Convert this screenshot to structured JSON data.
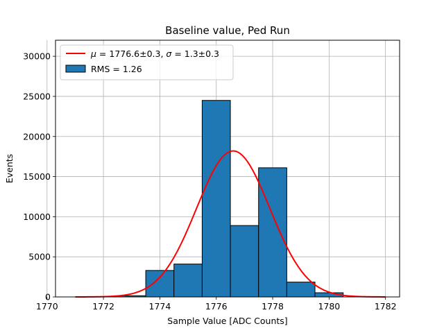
{
  "chart_data": {
    "type": "bar",
    "title": "Baseline value, Ped Run",
    "xlabel": "Sample Value [ADC Counts]",
    "ylabel": "Events",
    "xlim": [
      1770.3,
      1782.5
    ],
    "ylim": [
      0,
      32000
    ],
    "xticks": [
      1770,
      1772,
      1774,
      1776,
      1778,
      1780,
      1782
    ],
    "yticks": [
      0,
      5000,
      10000,
      15000,
      20000,
      25000,
      30000
    ],
    "grid": true,
    "legend_placement": "top-left",
    "histogram": {
      "name": "RMS = 1.26",
      "color": "#1f77b4",
      "edgecolor": "#000000",
      "bin_edges": [
        1770.5,
        1771.5,
        1772.5,
        1773.5,
        1774.5,
        1775.5,
        1776.5,
        1777.5,
        1778.5,
        1779.5,
        1780.5
      ],
      "counts": [
        0,
        20,
        150,
        3300,
        4100,
        24500,
        8900,
        16100,
        1850,
        520
      ]
    },
    "fit": {
      "name": "$\\mu = 1776.6 \\pm 0.3$, $\\sigma = 1.3 \\pm 0.3$",
      "legend_parts": {
        "mu_symbol": "μ",
        "mu_text": " = 1776.6±0.3, ",
        "sigma_symbol": "σ",
        "sigma_text": " = 1.3±0.3"
      },
      "color": "#ff0000",
      "mu": 1776.6,
      "sigma": 1.3,
      "amplitude": 18200,
      "x_range": [
        1771,
        1782
      ]
    }
  }
}
